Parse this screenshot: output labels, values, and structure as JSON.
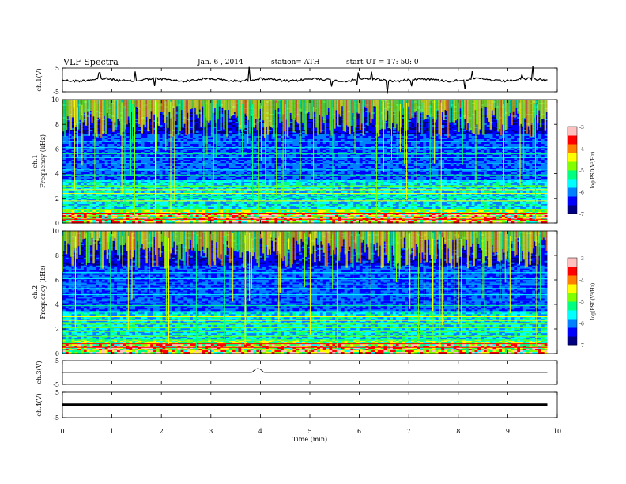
{
  "header": {
    "title": "VLF  Spectra",
    "date": "Jan. 6  , 2014",
    "station": "station= ATH",
    "start": "start  UT  =    17: 50: 0"
  },
  "chart_data": [
    {
      "type": "line",
      "ylabel": "ch.1(V)",
      "ylim": [
        -5,
        5
      ],
      "yticks": [
        "5",
        "-5"
      ],
      "baseline": 0,
      "description_level": "noisy trace near 0 V with spikes"
    },
    {
      "type": "heatmap",
      "ylabel": "ch.1\nFrequency  (kHz)",
      "ylim": [
        0,
        10
      ],
      "yticks": [
        "10",
        "8",
        "6",
        "4",
        "2",
        "0"
      ],
      "xlim": [
        0,
        10
      ],
      "data_end_min": 9.8,
      "colorbar": {
        "label": "log(PSD(V²/Hz)",
        "ticks": [
          "-3",
          "-4",
          "-5",
          "-6",
          "-7"
        ],
        "range": [
          -7,
          -3
        ]
      }
    },
    {
      "type": "heatmap",
      "ylabel": "ch.2\nFrequency  (kHz)",
      "ylim": [
        0,
        10
      ],
      "yticks": [
        "10",
        "8",
        "6",
        "4",
        "2",
        "0"
      ],
      "xlim": [
        0,
        10
      ],
      "data_end_min": 9.8,
      "colorbar": {
        "label": "log(PSD(V²/Hz)",
        "ticks": [
          "-3",
          "-4",
          "-5",
          "-6",
          "-7"
        ],
        "range": [
          -7,
          -3
        ]
      }
    },
    {
      "type": "line",
      "ylabel": "ch.3(V)",
      "ylim": [
        -5,
        5
      ],
      "yticks": [
        "5",
        "-5"
      ],
      "baseline": 0,
      "bump_at_min": 3.95
    },
    {
      "type": "line",
      "ylabel": "ch.4(V)",
      "ylim": [
        -5,
        5
      ],
      "yticks": [
        "5",
        "-5"
      ],
      "baseline": 0
    }
  ],
  "xaxis": {
    "label": "Time  (min)",
    "range": [
      0,
      10
    ],
    "ticks": [
      "0",
      "1",
      "2",
      "3",
      "4",
      "5",
      "6",
      "7",
      "8",
      "9",
      "10"
    ]
  },
  "colors": {
    "colormap": [
      "#000080",
      "#0000ff",
      "#0080ff",
      "#00ffff",
      "#00ff80",
      "#80ff00",
      "#ffff00",
      "#ff8000",
      "#ff0000",
      "#ffc0c0"
    ]
  }
}
